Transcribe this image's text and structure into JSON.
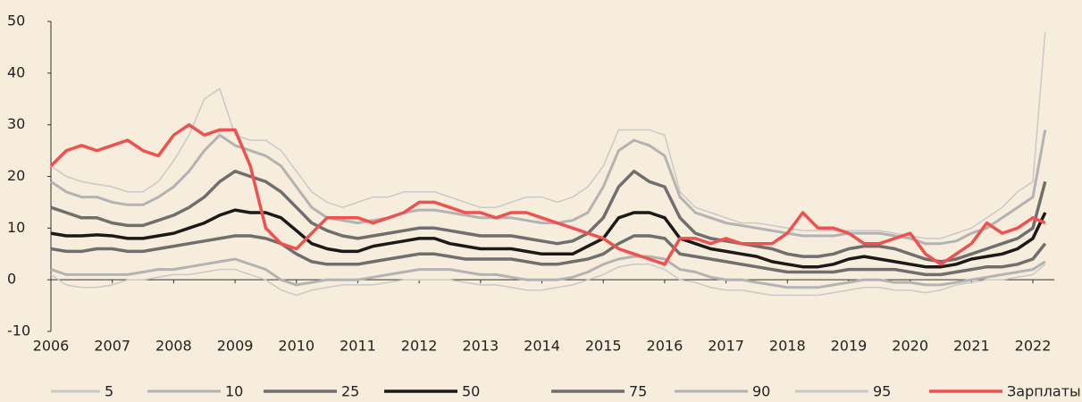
{
  "chart_data": {
    "type": "line",
    "x": [
      2006,
      2006.25,
      2006.5,
      2006.75,
      2007,
      2007.25,
      2007.5,
      2007.75,
      2008,
      2008.25,
      2008.5,
      2008.75,
      2009,
      2009.25,
      2009.5,
      2009.75,
      2010,
      2010.25,
      2010.5,
      2010.75,
      2011,
      2011.25,
      2011.5,
      2011.75,
      2012,
      2012.25,
      2012.5,
      2012.75,
      2013,
      2013.25,
      2013.5,
      2013.75,
      2014,
      2014.25,
      2014.5,
      2014.75,
      2015,
      2015.25,
      2015.5,
      2015.75,
      2016,
      2016.25,
      2016.5,
      2016.75,
      2017,
      2017.25,
      2017.5,
      2017.75,
      2018,
      2018.25,
      2018.5,
      2018.75,
      2019,
      2019.25,
      2019.5,
      2019.75,
      2020,
      2020.25,
      2020.5,
      2020.75,
      2021,
      2021.25,
      2021.5,
      2021.75,
      2022,
      2022.2
    ],
    "xlim": [
      2006,
      2022.4
    ],
    "xticks": [
      2006,
      2007,
      2008,
      2009,
      2010,
      2011,
      2012,
      2013,
      2014,
      2015,
      2016,
      2017,
      2018,
      2019,
      2020,
      2021,
      2022
    ],
    "ylim": [
      -10,
      50
    ],
    "yticks": [
      -10,
      0,
      10,
      20,
      30,
      40,
      50
    ],
    "series": [
      {
        "name": "5",
        "color": "#c9c9c9",
        "values": [
          1,
          -1,
          -1.5,
          -1.5,
          -1,
          0,
          0,
          0.5,
          1,
          1,
          1.5,
          2,
          2,
          1,
          0,
          -2,
          -3,
          -2,
          -1.5,
          -1,
          -1,
          -1,
          -0.5,
          0,
          0,
          0,
          0,
          -0.5,
          -1,
          -1,
          -1.5,
          -2,
          -2,
          -1.5,
          -1,
          0,
          1,
          2.5,
          3,
          3,
          2,
          0,
          -0.5,
          -1.5,
          -2,
          -2,
          -2.5,
          -3,
          -3,
          -3,
          -3,
          -2.5,
          -2,
          -1.5,
          -1.5,
          -2,
          -2,
          -2.5,
          -2,
          -1,
          -0.5,
          0,
          0,
          0.5,
          1,
          3
        ]
      },
      {
        "name": "10",
        "color": "#b3b3b3",
        "values": [
          2,
          1,
          1,
          1,
          1,
          1,
          1.5,
          2,
          2,
          2.5,
          3,
          3.5,
          4,
          3,
          2,
          0,
          -1,
          -0.5,
          0,
          0,
          0,
          0.5,
          1,
          1.5,
          2,
          2,
          2,
          1.5,
          1,
          1,
          0.5,
          0,
          0,
          0,
          0.5,
          1.5,
          3,
          4,
          4.5,
          4.5,
          4,
          2,
          1.5,
          0.5,
          0,
          0,
          -0.5,
          -1,
          -1.5,
          -1.5,
          -1.5,
          -1,
          -0.5,
          0,
          0,
          -0.5,
          -0.5,
          -1,
          -1,
          -0.5,
          0,
          0.5,
          1,
          1.5,
          2,
          3.5
        ]
      },
      {
        "name": "25",
        "color": "#6f6f6f",
        "values": [
          6,
          5.5,
          5.5,
          6,
          6,
          5.5,
          5.5,
          6,
          6.5,
          7,
          7.5,
          8,
          8.5,
          8.5,
          8,
          7,
          5,
          3.5,
          3,
          3,
          3,
          3.5,
          4,
          4.5,
          5,
          5,
          4.5,
          4,
          4,
          4,
          4,
          3.5,
          3,
          3,
          3.5,
          4,
          5,
          7,
          8.5,
          8.5,
          8,
          5,
          4.5,
          4,
          3.5,
          3,
          2.5,
          2,
          1.5,
          1.5,
          1.5,
          1.5,
          2,
          2,
          2,
          2,
          1.5,
          1,
          1,
          1.5,
          2,
          2.5,
          2.5,
          3,
          4,
          7
        ]
      },
      {
        "name": "50",
        "color": "#1a1a1a",
        "values": [
          9,
          8.5,
          8.5,
          8.7,
          8.5,
          8,
          8,
          8.5,
          9,
          10,
          11,
          12.5,
          13.5,
          13,
          13,
          12,
          9.5,
          7,
          6,
          5.5,
          5.5,
          6.5,
          7,
          7.5,
          8,
          8,
          7,
          6.5,
          6,
          6,
          6,
          5.5,
          5,
          5,
          5,
          6.5,
          8,
          12,
          13,
          13,
          12,
          8,
          7,
          6,
          5.5,
          5,
          4.5,
          3.5,
          3,
          2.5,
          2.5,
          3,
          4,
          4.5,
          4,
          3.5,
          3,
          2.5,
          2.5,
          3,
          4,
          4.5,
          5,
          6,
          8,
          13
        ]
      },
      {
        "name": "75",
        "color": "#6f6f6f",
        "values": [
          14,
          13,
          12,
          12,
          11,
          10.5,
          10.5,
          11.5,
          12.5,
          14,
          16,
          19,
          21,
          20,
          19,
          17,
          14,
          11,
          9.5,
          8.5,
          8,
          8.5,
          9,
          9.5,
          10,
          10,
          9.5,
          9,
          8.5,
          8.5,
          8.5,
          8,
          7.5,
          7,
          7.5,
          9,
          12,
          18,
          21,
          19,
          18,
          12,
          9,
          8,
          7.5,
          7,
          6.5,
          6,
          5,
          4.5,
          4.5,
          5,
          6,
          6.5,
          6.5,
          6,
          5,
          4,
          3.5,
          4,
          5,
          6,
          7,
          8,
          10,
          19
        ]
      },
      {
        "name": "90",
        "color": "#b3b3b3",
        "values": [
          19,
          17,
          16,
          16,
          15,
          14.5,
          14.5,
          16,
          18,
          21,
          25,
          28,
          26,
          25,
          24,
          22,
          18,
          14,
          12,
          11.5,
          11,
          11.5,
          12,
          13,
          13.5,
          13.5,
          13,
          12.5,
          12,
          12,
          12,
          11.5,
          11,
          11,
          11.5,
          13,
          18,
          25,
          27,
          26,
          24,
          16,
          13,
          12,
          11,
          10.5,
          10,
          9.5,
          9,
          8.5,
          8.5,
          8.5,
          9,
          9,
          9,
          8.5,
          8,
          7,
          7,
          7.5,
          9,
          10,
          12,
          14,
          16,
          29
        ]
      },
      {
        "name": "95",
        "color": "#c9c9c9",
        "values": [
          22,
          20,
          19,
          18.5,
          18,
          17,
          17,
          19,
          23,
          28,
          35,
          37,
          28,
          27,
          27,
          25,
          21,
          17,
          15,
          14,
          15,
          16,
          16,
          17,
          17,
          17,
          16,
          15,
          14,
          14,
          15,
          16,
          16,
          15,
          16,
          18,
          22,
          29,
          29,
          29,
          28,
          17,
          14,
          13,
          12,
          11,
          11,
          10.5,
          10,
          9.5,
          9.5,
          9.5,
          9.5,
          9.5,
          9.5,
          9,
          8.5,
          8,
          8,
          9,
          10,
          12,
          14,
          17,
          19,
          48
        ]
      },
      {
        "name": "Зарплаты",
        "color": "#f05050",
        "values": [
          22,
          25,
          26,
          25,
          26,
          27,
          25,
          24,
          28,
          30,
          28,
          29,
          29,
          22,
          10,
          7,
          6,
          9,
          12,
          12,
          12,
          11,
          12,
          13,
          15,
          15,
          14,
          13,
          13,
          12,
          13,
          13,
          12,
          11,
          10,
          9,
          8,
          6,
          5,
          4,
          3,
          8,
          8,
          7,
          8,
          7,
          7,
          7,
          9,
          13,
          10,
          10,
          9,
          7,
          7,
          8,
          9,
          5,
          3,
          5,
          7,
          11,
          9,
          10,
          12,
          11
        ]
      }
    ]
  }
}
